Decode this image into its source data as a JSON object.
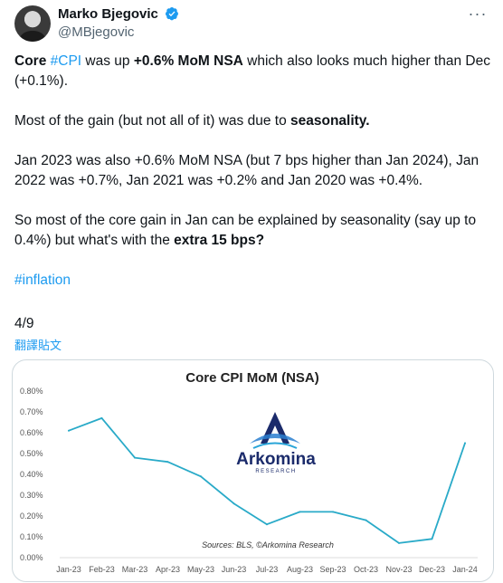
{
  "author": {
    "display_name": "Marko Bjegovic",
    "handle": "@MBjegovic",
    "verified_icon": "verified-badge-icon",
    "more_icon": "more-options-icon"
  },
  "tweet": {
    "p1": {
      "t1": "Core",
      "t2": "#CPI",
      "t3": " was up ",
      "t4": "+0.6% MoM NSA",
      "t5": " which also looks much higher than Dec (+0.1%)."
    },
    "p2": {
      "t1": "Most of the gain (but not all of it) was due to ",
      "t2": "seasonality."
    },
    "p3": "Jan 2023 was also +0.6% MoM NSA (but 7 bps higher than Jan 2024), Jan 2022 was +0.7%, Jan 2021 was +0.2% and Jan 2020 was +0.4%.",
    "p4": {
      "t1": "So most of the core gain in Jan can be explained by seasonality (say up to 0.4%) but what's with the ",
      "t2": "extra 15 bps?"
    },
    "p5": "#inflation",
    "page_count": "4/9",
    "translate_label": "翻譯貼文"
  },
  "chart_data": {
    "type": "line",
    "title": "Core CPI MoM (NSA)",
    "categories": [
      "Jan-23",
      "Feb-23",
      "Mar-23",
      "Apr-23",
      "May-23",
      "Jun-23",
      "Jul-23",
      "Aug-23",
      "Sep-23",
      "Oct-23",
      "Nov-23",
      "Dec-23",
      "Jan-24"
    ],
    "series": [
      {
        "values": [
          0.61,
          0.67,
          0.48,
          0.46,
          0.39,
          0.26,
          0.16,
          0.22,
          0.22,
          0.18,
          0.07,
          0.09,
          0.55
        ]
      }
    ],
    "ylim": [
      0,
      0.8
    ],
    "yticks": [
      "0.00%",
      "0.10%",
      "0.20%",
      "0.30%",
      "0.40%",
      "0.50%",
      "0.60%",
      "0.70%",
      "0.80%"
    ],
    "grid": false,
    "line_color": "#29aac8",
    "source": "Sources: BLS, ©Arkomina Research",
    "logo": {
      "name": "Arkomina",
      "tagline": "RESEARCH",
      "icon": "arkomina-logo-icon"
    }
  },
  "colors": {
    "accent": "#1d9bf0",
    "text": "#0f1419",
    "secondary": "#536471"
  }
}
